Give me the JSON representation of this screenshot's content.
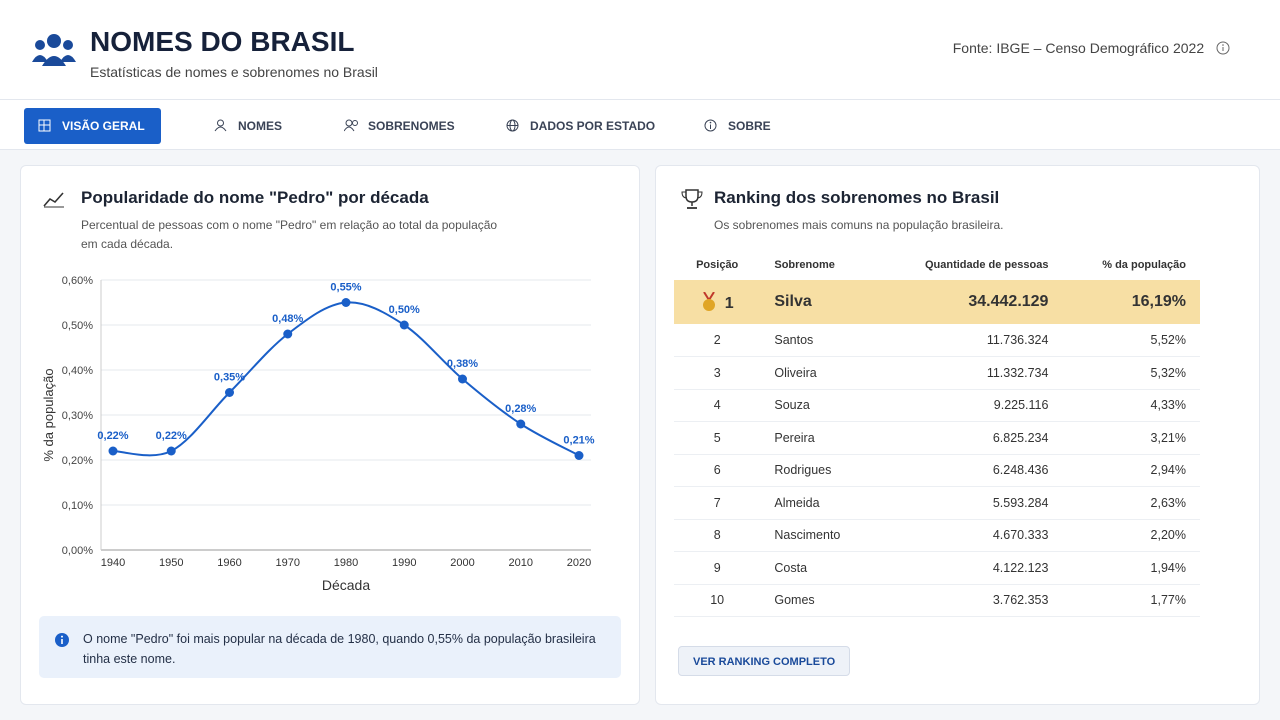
{
  "header": {
    "title": "NOMES DO BRASIL",
    "subtitle": "Estatísticas de nomes e sobrenomes no Brasil",
    "source": "Fonte: IBGE – Censo Demográfico 2022"
  },
  "nav": [
    "VISÃO GERAL",
    "NOMES",
    "SOBRENOMES",
    "DADOS POR ESTADO",
    "SOBRE"
  ],
  "chart_data": {
    "type": "line",
    "title": "Popularidade do nome \"Pedro\" por década",
    "subtitle": "Percentual de pessoas com o nome \"Pedro\" em relação ao total da população em cada década.",
    "x_label": "Década",
    "y_label": "% da população",
    "categories": [
      "1940",
      "1950",
      "1960",
      "1970",
      "1980",
      "1990",
      "2000",
      "2010",
      "2020"
    ],
    "values": [
      0.22,
      0.22,
      0.35,
      0.48,
      0.55,
      0.5,
      0.38,
      0.28,
      0.21
    ],
    "value_labels": [
      "0,22%",
      "0,22%",
      "0,35%",
      "0,48%",
      "0,55%",
      "0,50%",
      "0,38%",
      "0,28%",
      "0,21%"
    ],
    "color": "#1a5fc8",
    "ylim": [
      0,
      0.6
    ],
    "yticks": [
      {
        "value": 0,
        "label": "0,00%"
      },
      {
        "value": 0.1,
        "label": "0,10%"
      },
      {
        "value": 0.2,
        "label": "0,20%"
      },
      {
        "value": 0.3,
        "label": "0,30%"
      },
      {
        "value": 0.4,
        "label": "0,40%"
      },
      {
        "value": 0.5,
        "label": "0,50%"
      },
      {
        "value": 0.6,
        "label": "0,60%"
      }
    ],
    "grid": true
  },
  "note": "O nome \"Pedro\" foi mais popular na década de 1980, quando 0,55% da população brasileira tinha este nome.",
  "ranking": {
    "title": "Ranking dos sobrenomes no Brasil",
    "subtitle": "Os sobrenomes mais comuns na população brasileira.",
    "columns": [
      "Posição",
      "Sobrenome",
      "Quantidade de pessoas",
      "% da população"
    ],
    "rows": [
      [
        "1",
        "Silva",
        "34.442.129",
        "16,19%"
      ],
      [
        "2",
        "Santos",
        "11.736.324",
        "5,52%"
      ],
      [
        "3",
        "Oliveira",
        "11.332.734",
        "5,32%"
      ],
      [
        "4",
        "Souza",
        "9.225.116",
        "4,33%"
      ],
      [
        "5",
        "Pereira",
        "6.825.234",
        "3,21%"
      ],
      [
        "6",
        "Rodrigues",
        "6.248.436",
        "2,94%"
      ],
      [
        "7",
        "Almeida",
        "5.593.284",
        "2,63%"
      ],
      [
        "8",
        "Nascimento",
        "4.670.333",
        "2,20%"
      ],
      [
        "9",
        "Costa",
        "4.122.123",
        "1,94%"
      ],
      [
        "10",
        "Gomes",
        "3.762.353",
        "1,77%"
      ]
    ],
    "button": "VER RANKING COMPLETO"
  }
}
